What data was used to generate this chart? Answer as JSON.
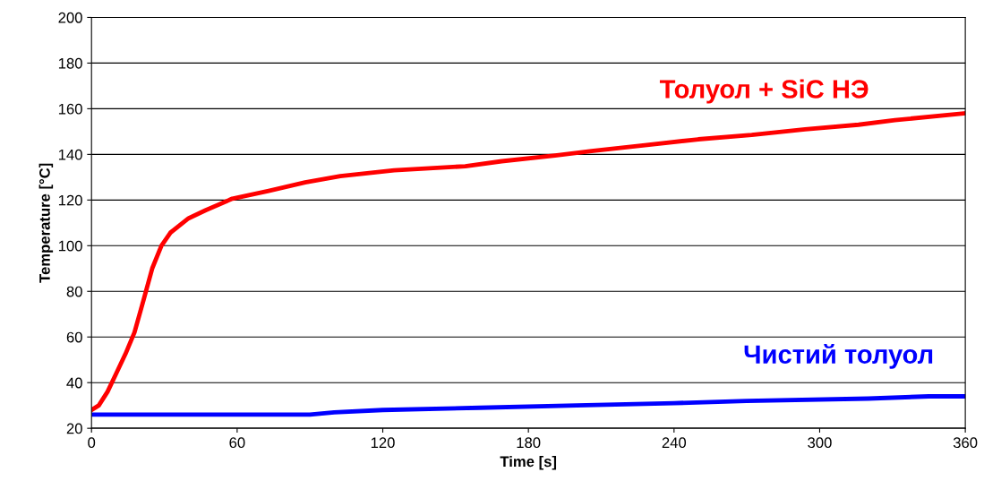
{
  "chart_data": {
    "type": "line",
    "xlabel": "Time [s]",
    "ylabel": "Temperature [°C]",
    "xlim": [
      0,
      360
    ],
    "xticks": [
      0,
      60,
      120,
      180,
      240,
      300,
      360
    ],
    "ylim": [
      20,
      200
    ],
    "yticks": [
      20,
      40,
      60,
      80,
      100,
      120,
      140,
      160,
      180,
      200
    ],
    "grid": "y",
    "marker": "none",
    "line_style": "solid",
    "legend": false,
    "series": [
      {
        "name": "Толуол + SiC НЭ",
        "color": "#ff0000",
        "x": [
          0,
          3,
          6.6,
          10,
          14,
          17.7,
          21.4,
          25,
          28.8,
          32.5,
          40,
          47,
          58,
          73,
          88,
          102.5,
          124.7,
          154,
          169,
          191,
          206,
          228,
          250,
          272,
          294,
          316,
          331,
          360
        ],
        "values": [
          28,
          30,
          36,
          43.6,
          52.6,
          62,
          76,
          90,
          100,
          105.7,
          112,
          115.5,
          120.6,
          124,
          127.7,
          130.5,
          133,
          134.8,
          137,
          139.5,
          141.5,
          144,
          146.6,
          148.5,
          151,
          153,
          155,
          158
        ]
      },
      {
        "name": "Чистий толуол",
        "color": "#0000ff",
        "x": [
          0,
          90,
          100,
          120,
          160,
          200,
          240,
          270,
          320,
          345,
          360
        ],
        "values": [
          26,
          26,
          27,
          28,
          29,
          30,
          31,
          32,
          33,
          34,
          34
        ]
      }
    ]
  }
}
